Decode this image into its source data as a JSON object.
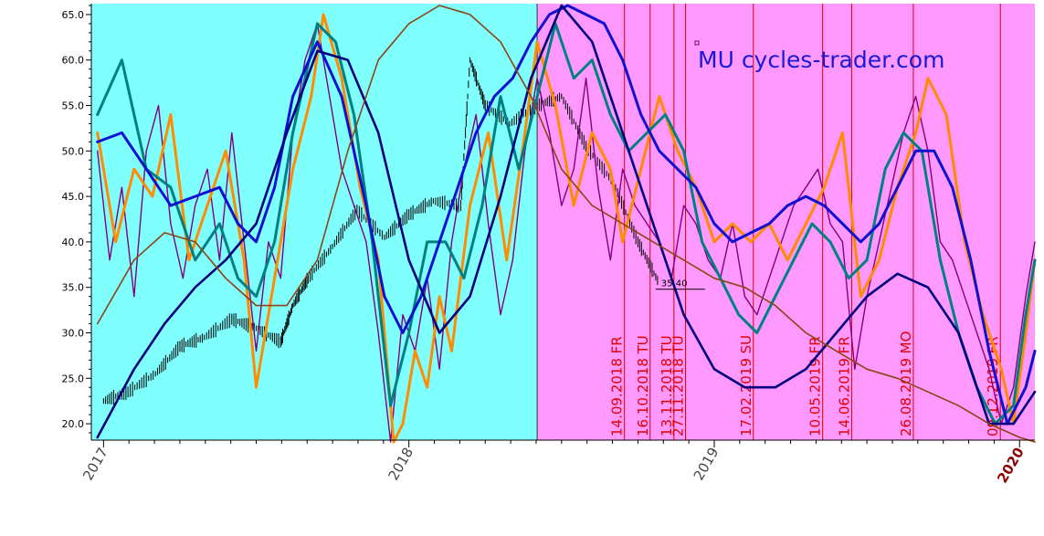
{
  "chart_data": {
    "type": "line",
    "title": "MU cycles-trader.com",
    "ylim": [
      18.2,
      66.2
    ],
    "xlim": [
      2016.96,
      2020.05
    ],
    "y_ticks": [
      20.0,
      25.0,
      30.0,
      35.0,
      40.0,
      45.0,
      50.0,
      55.0,
      60.0,
      65.0
    ],
    "x_ticks": [
      {
        "label": "2017",
        "value": 2017.0,
        "highlight": false
      },
      {
        "label": "2018",
        "value": 2018.0,
        "highlight": false
      },
      {
        "label": "2019",
        "value": 2019.0,
        "highlight": false
      },
      {
        "label": "2020",
        "value": 2020.0,
        "highlight": true
      }
    ],
    "background_regions": [
      {
        "from": 2016.96,
        "to": 2018.42,
        "color": "#80ffff"
      },
      {
        "from": 2018.42,
        "to": 2020.05,
        "color": "#ff99ff"
      }
    ],
    "cycle_markers": [
      {
        "x": 2018.706,
        "label": "14.09.2018 FR"
      },
      {
        "x": 2018.79,
        "label": "16.10.2018 TU"
      },
      {
        "x": 2018.868,
        "label": "13.11.2018 TU"
      },
      {
        "x": 2018.906,
        "label": "27.11.2018 TU"
      },
      {
        "x": 2019.128,
        "label": "17.02.2019 SU"
      },
      {
        "x": 2019.355,
        "label": "10.05.2019 FR"
      },
      {
        "x": 2019.45,
        "label": "14.06.2019 FR"
      },
      {
        "x": 2019.652,
        "label": "26.08.2019 MO"
      },
      {
        "x": 2019.937,
        "label": "09.12.2019 FR"
      }
    ],
    "annotations": [
      {
        "x": 2018.82,
        "y": 35.4,
        "text": "35.40"
      }
    ],
    "series": [
      {
        "color": "#000000",
        "width": 1,
        "style": "bars",
        "x": [
          2017.0,
          2017.08,
          2017.17,
          2017.25,
          2017.33,
          2017.42,
          2017.5,
          2017.58,
          2017.62,
          2017.67,
          2017.75,
          2017.83,
          2017.92,
          2018.0,
          2018.08,
          2018.17,
          2018.2,
          2018.25,
          2018.33,
          2018.42,
          2018.5,
          2018.58,
          2018.67,
          2018.75,
          2018.82
        ],
        "values": [
          22.5,
          23.5,
          25.5,
          28.5,
          29.5,
          31.5,
          30.5,
          29.0,
          33.0,
          36.0,
          39.5,
          43.5,
          40.5,
          43.0,
          44.5,
          44.0,
          60.0,
          55.0,
          53.0,
          55.0,
          56.0,
          50.5,
          46.5,
          40.0,
          35.4
        ]
      },
      {
        "color": "#800080",
        "width": 1.4,
        "x": [
          2016.98,
          2017.02,
          2017.06,
          2017.1,
          2017.14,
          2017.18,
          2017.22,
          2017.26,
          2017.3,
          2017.34,
          2017.38,
          2017.42,
          2017.46,
          2017.5,
          2017.54,
          2017.58,
          2017.62,
          2017.66,
          2017.7,
          2017.74,
          2017.78,
          2017.82,
          2017.86,
          2017.9,
          2017.94,
          2017.98,
          2018.02,
          2018.06,
          2018.1,
          2018.14,
          2018.18,
          2018.22,
          2018.26,
          2018.3,
          2018.34,
          2018.38,
          2018.42,
          2018.46,
          2018.5,
          2018.54,
          2018.58,
          2018.62,
          2018.66,
          2018.7,
          2018.74,
          2018.78,
          2018.82,
          2018.86,
          2018.9,
          2018.94,
          2018.98,
          2019.02,
          2019.06,
          2019.1,
          2019.14,
          2019.18,
          2019.22,
          2019.26,
          2019.3,
          2019.34,
          2019.38,
          2019.42,
          2019.46,
          2019.5,
          2019.54,
          2019.58,
          2019.62,
          2019.66,
          2019.7,
          2019.74,
          2019.78,
          2019.82,
          2019.86,
          2019.9,
          2019.94,
          2019.98,
          2020.02,
          2020.05
        ],
        "values": [
          50,
          38,
          46,
          34,
          50,
          55,
          42,
          36,
          44,
          48,
          38,
          52,
          40,
          28,
          40,
          36,
          52,
          60,
          64,
          56,
          48,
          44,
          40,
          30,
          18,
          32,
          28,
          36,
          26,
          40,
          48,
          54,
          42,
          32,
          38,
          50,
          58,
          52,
          44,
          48,
          58,
          46,
          38,
          48,
          44,
          42,
          40,
          36,
          44,
          42,
          38,
          36,
          42,
          34,
          32,
          36,
          40,
          44,
          46,
          48,
          42,
          40,
          26,
          34,
          40,
          46,
          52,
          56,
          50,
          40,
          38,
          34,
          30,
          26,
          20,
          24,
          34,
          40
        ]
      },
      {
        "color": "#ff8c00",
        "width": 3,
        "x": [
          2016.98,
          2017.04,
          2017.1,
          2017.16,
          2017.22,
          2017.28,
          2017.34,
          2017.4,
          2017.46,
          2017.5,
          2017.56,
          2017.62,
          2017.68,
          2017.72,
          2017.78,
          2017.84,
          2017.9,
          2017.95,
          2017.98,
          2018.02,
          2018.06,
          2018.1,
          2018.14,
          2018.2,
          2018.26,
          2018.32,
          2018.38,
          2018.42,
          2018.48,
          2018.54,
          2018.6,
          2018.66,
          2018.7,
          2018.76,
          2018.82,
          2018.88,
          2018.94,
          2019.0,
          2019.06,
          2019.12,
          2019.18,
          2019.24,
          2019.3,
          2019.36,
          2019.42,
          2019.48,
          2019.54,
          2019.6,
          2019.66,
          2019.7,
          2019.76,
          2019.82,
          2019.88,
          2019.94,
          2019.98,
          2020.02,
          2020.05
        ],
        "values": [
          52,
          40,
          48,
          45,
          54,
          38,
          44,
          50,
          38,
          24,
          36,
          48,
          56,
          65,
          58,
          46,
          38,
          18,
          20,
          28,
          24,
          34,
          28,
          44,
          52,
          38,
          52,
          62,
          55,
          44,
          52,
          48,
          40,
          48,
          56,
          50,
          46,
          40,
          42,
          40,
          42,
          38,
          42,
          46,
          52,
          34,
          38,
          46,
          52,
          58,
          54,
          40,
          32,
          26,
          20,
          30,
          38
        ]
      },
      {
        "color": "#008080",
        "width": 3,
        "x": [
          2016.98,
          2017.06,
          2017.14,
          2017.22,
          2017.3,
          2017.38,
          2017.44,
          2017.5,
          2017.56,
          2017.62,
          2017.7,
          2017.76,
          2017.82,
          2017.88,
          2017.94,
          2018.0,
          2018.06,
          2018.12,
          2018.18,
          2018.24,
          2018.3,
          2018.36,
          2018.42,
          2018.48,
          2018.54,
          2018.6,
          2018.66,
          2018.72,
          2018.78,
          2018.84,
          2018.9,
          2018.96,
          2019.02,
          2019.08,
          2019.14,
          2019.2,
          2019.26,
          2019.32,
          2019.38,
          2019.44,
          2019.5,
          2019.56,
          2019.62,
          2019.68,
          2019.74,
          2019.8,
          2019.86,
          2019.92,
          2019.98,
          2020.02,
          2020.05
        ],
        "values": [
          54,
          60,
          48,
          46,
          38,
          42,
          36,
          34,
          40,
          52,
          64,
          62,
          54,
          40,
          22,
          30,
          40,
          40,
          36,
          44,
          56,
          48,
          56,
          64,
          58,
          60,
          54,
          50,
          52,
          54,
          50,
          40,
          36,
          32,
          30,
          34,
          38,
          42,
          40,
          36,
          38,
          48,
          52,
          50,
          38,
          30,
          24,
          20,
          22,
          32,
          38
        ]
      },
      {
        "color": "#1010d0",
        "width": 3,
        "x": [
          2016.98,
          2017.06,
          2017.14,
          2017.22,
          2017.3,
          2017.38,
          2017.44,
          2017.5,
          2017.56,
          2017.62,
          2017.7,
          2017.78,
          2017.86,
          2017.92,
          2017.98,
          2018.04,
          2018.1,
          2018.16,
          2018.22,
          2018.28,
          2018.34,
          2018.4,
          2018.46,
          2018.52,
          2018.58,
          2018.64,
          2018.7,
          2018.76,
          2018.82,
          2018.88,
          2018.94,
          2019.0,
          2019.06,
          2019.12,
          2019.18,
          2019.24,
          2019.3,
          2019.36,
          2019.42,
          2019.48,
          2019.54,
          2019.6,
          2019.66,
          2019.72,
          2019.78,
          2019.84,
          2019.9,
          2019.96,
          2020.02,
          2020.05
        ],
        "values": [
          51,
          52,
          48,
          44,
          45,
          46,
          42,
          40,
          46,
          56,
          62,
          56,
          44,
          34,
          30,
          34,
          40,
          46,
          52,
          56,
          58,
          62,
          65,
          66,
          65,
          64,
          60,
          54,
          50,
          48,
          46,
          42,
          40,
          41,
          42,
          44,
          45,
          44,
          42,
          40,
          42,
          46,
          50,
          50,
          46,
          38,
          28,
          20,
          24,
          28
        ]
      },
      {
        "color": "#000080",
        "width": 2.6,
        "x": [
          2016.98,
          2017.1,
          2017.2,
          2017.3,
          2017.4,
          2017.5,
          2017.6,
          2017.7,
          2017.8,
          2017.9,
          2018.0,
          2018.1,
          2018.2,
          2018.3,
          2018.4,
          2018.5,
          2018.6,
          2018.7,
          2018.8,
          2018.9,
          2019.0,
          2019.1,
          2019.2,
          2019.3,
          2019.4,
          2019.5,
          2019.6,
          2019.7,
          2019.8,
          2019.9,
          2019.98,
          2020.05
        ],
        "values": [
          18.5,
          26,
          31,
          35,
          38,
          42,
          52,
          61,
          60,
          52,
          38,
          30,
          34,
          45,
          58,
          66,
          62,
          52,
          42,
          32,
          26,
          24,
          24,
          26,
          30,
          34,
          36.5,
          35,
          30,
          20,
          20,
          23.5
        ]
      },
      {
        "color": "#8b4513",
        "width": 1.6,
        "x": [
          2016.98,
          2017.1,
          2017.2,
          2017.3,
          2017.4,
          2017.5,
          2017.6,
          2017.7,
          2017.8,
          2017.9,
          2018.0,
          2018.1,
          2018.2,
          2018.3,
          2018.4,
          2018.5,
          2018.6,
          2018.7,
          2018.8,
          2018.9,
          2019.0,
          2019.1,
          2019.2,
          2019.3,
          2019.4,
          2019.5,
          2019.6,
          2019.7,
          2019.8,
          2019.9,
          2020.0,
          2020.05
        ],
        "values": [
          31,
          38,
          41,
          40,
          36,
          33,
          33,
          38,
          50,
          60,
          64,
          66,
          65,
          62,
          56,
          48,
          44,
          42,
          40,
          38,
          36,
          35,
          33,
          30,
          28,
          26,
          25,
          23.5,
          22,
          20,
          18.5,
          18
        ]
      }
    ]
  }
}
